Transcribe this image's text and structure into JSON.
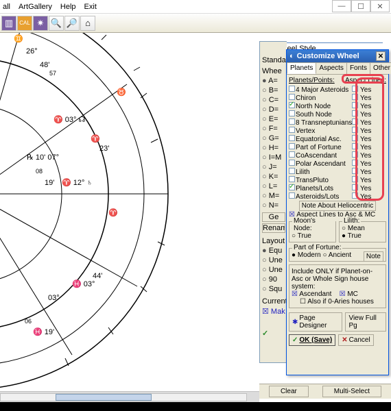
{
  "menu": {
    "m1": "all",
    "m2": "ArtGallery",
    "m3": "Help",
    "m4": "Exit"
  },
  "wheelstyle": {
    "title": "Wheel Style",
    "standard": "Standar"
  },
  "leftcol": {
    "r1": "A=",
    "r2": "B=",
    "r3": "C=",
    "r4": "D=",
    "r5": "E=",
    "r6": "F=",
    "r7": "G=",
    "r8": "H=",
    "r9": "I=M",
    "r10": "J=",
    "r11": "K=",
    "r12": "L=",
    "r13": "M=",
    "r14": "N=",
    "ge": "Ge",
    "renam": "Renam",
    "layout": "Layout",
    "eq": "Equ",
    "une1": "Une",
    "une2": "Une",
    "n90": "90",
    "sq": "Squ",
    "current": "Current",
    "mak": "Mak"
  },
  "dlg": {
    "title": "Customize Wheel",
    "tabs": {
      "planets": "Planets",
      "aspects": "Aspects",
      "fonts": "Fonts",
      "other": "Other"
    },
    "hdr_left": "Planets/Points:",
    "hdr_right": "Aspect Lines:",
    "rows": [
      {
        "l": "4 Major Asteroids",
        "c1": false,
        "yes": "Yes"
      },
      {
        "l": "Chiron",
        "c1": false,
        "yes": "Yes"
      },
      {
        "l": "North Node",
        "c1": true,
        "yes": "Yes"
      },
      {
        "l": "South Node",
        "c1": false,
        "yes": "Yes"
      },
      {
        "l": "8 Transneptunians",
        "c1": false,
        "yes": "Yes"
      },
      {
        "l": "Vertex",
        "c1": false,
        "yes": "Yes"
      },
      {
        "l": "Equatorial Asc.",
        "c1": false,
        "yes": "Yes"
      },
      {
        "l": "Part of Fortune",
        "c1": false,
        "yes": "Yes"
      },
      {
        "l": "CoAscendant",
        "c1": false,
        "yes": "Yes"
      },
      {
        "l": "Polar Ascendant",
        "c1": false,
        "yes": "Yes"
      },
      {
        "l": "Lilith",
        "c1": false,
        "yes": "Yes"
      },
      {
        "l": "TransPluto",
        "c1": false,
        "yes": "Yes"
      },
      {
        "l": "Planets/Lots",
        "c1": true,
        "yes": "Yes"
      },
      {
        "l": "Asteroids/Lots",
        "c1": false,
        "yes": "Yes"
      }
    ],
    "note_helio": "Note About Heliocentric",
    "asc_mc": "Aspect Lines to Asc & MC",
    "moon_node": "Moon's Node:",
    "lilith": "Lilith:",
    "mean": "Mean",
    "true": "True",
    "pof": "Part of Fortune:",
    "modern": "Modern",
    "ancient": "Ancient",
    "note": "Note",
    "inc_only": "Include ONLY if Planet-on-Asc or Whole Sign house system:",
    "ascendant": "Ascendant",
    "mc": "MC",
    "also_aries": "Also if 0-Aries houses",
    "page_designer": "Page Designer",
    "view_full": "View Full Pg",
    "ok": "OK (Save)",
    "cancel": "Cancel"
  },
  "bottom": {
    "clear": "Clear",
    "multi": "Multi-Select"
  },
  "chart": {
    "degrees": [
      "26°",
      "48'",
      "57",
      "03°",
      "23'",
      "10'",
      "07°",
      "08",
      "19'",
      "12°",
      "44'",
      "03°",
      "03°",
      "06",
      "19'"
    ]
  }
}
